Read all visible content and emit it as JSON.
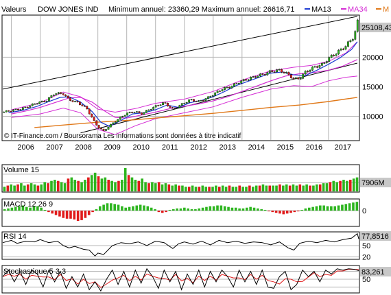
{
  "header": {
    "prefix": "Valeurs",
    "symbol": "DOW JONES IND",
    "minmax": "Minimum annuel: 23360,29 Maximum annuel: 26616,71",
    "ma13_label": "MA13",
    "ma34_label": "MA34",
    "ma_cut_label": "M"
  },
  "copyright": "© IT-Finance.com / Boursorama Les informations sont données à titre indicatif",
  "colors": {
    "up": "#2db51f",
    "down": "#e01b1b",
    "ma13": "#1e3cd2",
    "ma34": "#d42bd4",
    "ma_long": "#e07818",
    "trend": "#000000",
    "grid": "#b4b4b4",
    "last_box": "#c8c8c8"
  },
  "chart_data": [
    {
      "type": "line",
      "panel": "price",
      "title": "DOW JONES IND",
      "xlabel": "",
      "ylabel": "",
      "x_tick_labels": [
        "2006",
        "2007",
        "2008",
        "2009",
        "2010",
        "2011",
        "2012",
        "2013",
        "2014",
        "2015",
        "2016",
        "2017"
      ],
      "y_tick_labels": [
        "10000",
        "15000",
        "20000"
      ],
      "ylim": [
        6000,
        27000
      ],
      "last_value_label": "25108,43",
      "scale": "linear",
      "grid": true,
      "series": [
        {
          "name": "",
          "role": "price",
          "x": [
            2005.7,
            2006.0,
            2006.3,
            2006.6,
            2006.9,
            2007.2,
            2007.5,
            2007.8,
            2008.0,
            2008.3,
            2008.6,
            2008.9,
            2009.0,
            2009.2,
            2009.4,
            2009.7,
            2010.0,
            2010.3,
            2010.5,
            2010.8,
            2011.0,
            2011.3,
            2011.6,
            2011.9,
            2012.2,
            2012.5,
            2012.8,
            2013.0,
            2013.3,
            2013.6,
            2013.9,
            2014.2,
            2014.5,
            2014.8,
            2015.0,
            2015.3,
            2015.6,
            2015.8,
            2016.0,
            2016.2,
            2016.5,
            2016.8,
            2017.0,
            2017.3,
            2017.6,
            2017.9,
            2018.0,
            2018.05
          ],
          "y": [
            10700,
            11000,
            11200,
            11700,
            12300,
            12600,
            13900,
            13800,
            12800,
            12300,
            11400,
            8900,
            8200,
            7500,
            8400,
            9500,
            10500,
            10800,
            10400,
            11200,
            11700,
            12300,
            11200,
            12000,
            12800,
            12500,
            13100,
            13700,
            14600,
            15000,
            15800,
            16300,
            16800,
            17200,
            17600,
            17800,
            17100,
            16300,
            16400,
            17500,
            18300,
            18800,
            19800,
            20800,
            21900,
            23600,
            26200,
            25100
          ]
        },
        {
          "name": "MA13",
          "role": "ma13",
          "x": [
            2005.9,
            2006.4,
            2006.9,
            2007.3,
            2007.7,
            2008.0,
            2008.4,
            2008.8,
            2009.1,
            2009.4,
            2009.8,
            2010.2,
            2010.6,
            2011.0,
            2011.4,
            2011.8,
            2012.2,
            2012.6,
            2013.0,
            2013.4,
            2013.8,
            2014.2,
            2014.6,
            2015.0,
            2015.4,
            2015.8,
            2016.2,
            2016.6,
            2017.0,
            2017.4,
            2017.8,
            2018.0
          ],
          "y": [
            10600,
            11000,
            11700,
            12500,
            13200,
            13300,
            12400,
            10800,
            9000,
            8300,
            9300,
            10400,
            10600,
            11100,
            11900,
            11500,
            12300,
            12700,
            13300,
            14200,
            15200,
            15900,
            16600,
            17300,
            17500,
            17000,
            16900,
            17800,
            18800,
            19900,
            21300,
            22600
          ]
        },
        {
          "name": "MA34",
          "role": "ma34",
          "x": [
            2006.0,
            2006.5,
            2007.0,
            2007.5,
            2008.0,
            2008.4,
            2008.8,
            2009.2,
            2009.6,
            2010.0,
            2010.5,
            2011.0,
            2011.5,
            2012.0,
            2012.5,
            2013.0,
            2013.5,
            2014.0,
            2014.5,
            2015.0,
            2015.5,
            2016.0,
            2016.5,
            2017.0,
            2017.5,
            2018.0
          ],
          "y": [
            10400,
            10900,
            11500,
            12300,
            13100,
            13200,
            12400,
            11000,
            9800,
            9700,
            10200,
            10700,
            11300,
            11700,
            12100,
            12600,
            13300,
            14200,
            15100,
            16000,
            16800,
            17200,
            17400,
            17800,
            18500,
            19600
          ]
        },
        {
          "name": "",
          "role": "ma_long",
          "x": [
            2006.8,
            2008.0,
            2009.0,
            2010.0,
            2011.0,
            2012.0,
            2013.0,
            2014.0,
            2015.0,
            2016.0,
            2017.0,
            2018.0
          ],
          "y": [
            8100,
            8600,
            9000,
            9300,
            9700,
            10100,
            10500,
            11000,
            11500,
            11900,
            12500,
            13200
          ]
        },
        {
          "name": "",
          "role": "envelope_upper",
          "x": [
            2006.0,
            2007.0,
            2007.8,
            2008.4,
            2009.0,
            2009.6,
            2010.3,
            2011.0,
            2012.0,
            2013.0,
            2014.0,
            2015.0,
            2015.8,
            2016.4,
            2017.0,
            2017.6,
            2018.0
          ],
          "y": [
            11100,
            12300,
            14100,
            13300,
            11200,
            10700,
            11300,
            12200,
            12900,
            14200,
            16100,
            17700,
            18300,
            18600,
            19300,
            20700,
            22600
          ]
        },
        {
          "name": "",
          "role": "envelope_lower",
          "x": [
            2006.0,
            2007.0,
            2007.8,
            2008.4,
            2009.0,
            2009.6,
            2010.3,
            2011.0,
            2012.0,
            2013.0,
            2014.0,
            2015.0,
            2015.8,
            2016.4,
            2017.0,
            2017.6,
            2018.0
          ],
          "y": [
            9800,
            10400,
            11400,
            10600,
            7800,
            6900,
            8400,
            9600,
            10600,
            11600,
            13200,
            14600,
            15200,
            15000,
            16000,
            16600,
            16800
          ]
        },
        {
          "name": "",
          "role": "trend",
          "x": [
            2005.7,
            2018.0
          ],
          "y": [
            14600,
            26900
          ]
        },
        {
          "name": "",
          "role": "trend",
          "x": [
            2008.4,
            2018.0
          ],
          "y": [
            7200,
            19000
          ]
        }
      ]
    },
    {
      "type": "bar",
      "panel": "volume",
      "title": "Volume 15",
      "last_value_label": "7906M",
      "x_start": 2005.7,
      "x_end": 2018.05,
      "values": [
        4,
        5,
        6,
        5,
        6,
        7,
        5,
        6,
        7,
        6,
        5,
        6,
        8,
        7,
        9,
        10,
        9,
        8,
        7,
        11,
        12,
        10,
        9,
        8,
        10,
        12,
        14,
        16,
        13,
        11,
        12,
        10,
        9,
        8,
        9,
        10,
        20,
        14,
        12,
        10,
        9,
        11,
        8,
        7,
        8,
        7,
        8,
        6,
        7,
        6,
        5,
        6,
        5,
        5,
        4,
        4,
        5,
        4,
        4,
        5,
        4,
        4,
        4,
        5,
        4,
        5,
        4,
        5,
        4,
        4,
        5,
        4,
        4,
        5,
        4,
        5,
        5,
        6,
        5,
        5,
        5,
        5,
        6,
        5,
        6,
        5,
        6,
        5,
        6,
        5,
        6,
        5,
        5,
        6,
        6,
        7,
        7,
        8,
        9,
        8,
        9,
        10,
        9,
        10,
        11,
        12
      ]
    },
    {
      "type": "bar",
      "panel": "macd",
      "title": "MACD 12 26 9",
      "y_tick_labels": [
        "0"
      ],
      "x_start": 2005.7,
      "x_end": 2018.05,
      "values": [
        1.0,
        1.5,
        2.0,
        2.5,
        3.0,
        3.5,
        2.5,
        2.0,
        3.0,
        3.0,
        2.0,
        0.5,
        -1.0,
        -2.0,
        -3.0,
        -4.0,
        -5.0,
        -5.5,
        -5.5,
        -6.0,
        -7.0,
        -6.5,
        -5.0,
        -3.0,
        -1.0,
        1.0,
        3.0,
        4.0,
        5.0,
        5.0,
        4.5,
        4.0,
        3.0,
        2.0,
        2.5,
        3.0,
        3.5,
        4.0,
        3.5,
        3.0,
        2.0,
        1.0,
        -1.0,
        -1.5,
        -1.0,
        0.5,
        1.0,
        1.5,
        1.5,
        2.0,
        1.5,
        1.0,
        1.0,
        1.5,
        2.0,
        2.5,
        3.0,
        3.0,
        3.5,
        3.5,
        3.0,
        2.5,
        2.0,
        2.0,
        1.5,
        1.5,
        2.0,
        2.5,
        2.0,
        1.5,
        1.0,
        0.5,
        -0.5,
        -1.0,
        -1.5,
        -2.0,
        -2.5,
        -2.0,
        -1.5,
        -1.0,
        -0.5,
        0.5,
        1.5,
        2.0,
        2.5,
        3.0,
        3.5,
        3.5,
        3.0,
        3.0,
        3.0,
        3.5,
        4.0,
        4.5,
        5.0,
        5.5,
        6.0
      ]
    },
    {
      "type": "line",
      "panel": "rsi",
      "title": "RSI 14",
      "last_value_label": "77,8516",
      "y_tick_labels": [
        "50",
        "20"
      ],
      "ylim": [
        15,
        85
      ],
      "series": [
        {
          "name": "",
          "x": [
            2005.7,
            2006.0,
            2006.2,
            2006.5,
            2006.8,
            2007.0,
            2007.3,
            2007.6,
            2007.8,
            2008.0,
            2008.2,
            2008.5,
            2008.7,
            2008.9,
            2009.0,
            2009.2,
            2009.5,
            2009.8,
            2010.1,
            2010.4,
            2010.7,
            2011.0,
            2011.3,
            2011.6,
            2011.8,
            2012.0,
            2012.3,
            2012.6,
            2012.9,
            2013.2,
            2013.5,
            2013.8,
            2014.1,
            2014.4,
            2014.7,
            2015.0,
            2015.3,
            2015.6,
            2015.8,
            2016.0,
            2016.3,
            2016.6,
            2016.9,
            2017.2,
            2017.5,
            2017.8,
            2018.0,
            2018.05
          ],
          "y": [
            58,
            64,
            56,
            62,
            60,
            66,
            58,
            62,
            50,
            44,
            48,
            40,
            38,
            22,
            30,
            26,
            50,
            58,
            55,
            60,
            50,
            62,
            58,
            42,
            55,
            60,
            54,
            62,
            52,
            64,
            58,
            62,
            56,
            60,
            58,
            52,
            60,
            44,
            38,
            56,
            62,
            58,
            64,
            60,
            66,
            70,
            82,
            68
          ]
        }
      ]
    },
    {
      "type": "line",
      "panel": "stochastic",
      "title": "Stochastique 5 3 3",
      "last_value_label": "83,261",
      "y_tick_labels": [
        "50"
      ],
      "ylim": [
        0,
        100
      ],
      "series": [
        {
          "name": "",
          "role": "k",
          "x": [
            2005.7,
            2005.9,
            2006.1,
            2006.3,
            2006.5,
            2006.7,
            2006.9,
            2007.1,
            2007.3,
            2007.5,
            2007.7,
            2007.9,
            2008.1,
            2008.3,
            2008.5,
            2008.7,
            2008.9,
            2009.1,
            2009.3,
            2009.5,
            2009.7,
            2009.9,
            2010.1,
            2010.3,
            2010.5,
            2010.7,
            2010.9,
            2011.1,
            2011.3,
            2011.5,
            2011.7,
            2011.9,
            2012.1,
            2012.3,
            2012.5,
            2012.7,
            2012.9,
            2013.1,
            2013.3,
            2013.5,
            2013.7,
            2013.9,
            2014.1,
            2014.3,
            2014.5,
            2014.7,
            2014.9,
            2015.1,
            2015.3,
            2015.5,
            2015.7,
            2015.9,
            2016.1,
            2016.3,
            2016.5,
            2016.7,
            2016.9,
            2017.1,
            2017.3,
            2017.5,
            2017.7,
            2017.9,
            2018.05
          ],
          "y": [
            60,
            85,
            40,
            80,
            30,
            85,
            70,
            20,
            85,
            40,
            80,
            15,
            60,
            20,
            70,
            10,
            40,
            5,
            50,
            85,
            30,
            80,
            20,
            85,
            35,
            90,
            60,
            15,
            85,
            40,
            80,
            10,
            70,
            30,
            85,
            20,
            80,
            40,
            85,
            60,
            20,
            85,
            40,
            80,
            30,
            85,
            20,
            15,
            60,
            80,
            10,
            30,
            85,
            60,
            80,
            40,
            85,
            70,
            90,
            85,
            90,
            88,
            83
          ]
        }
      ]
    }
  ]
}
